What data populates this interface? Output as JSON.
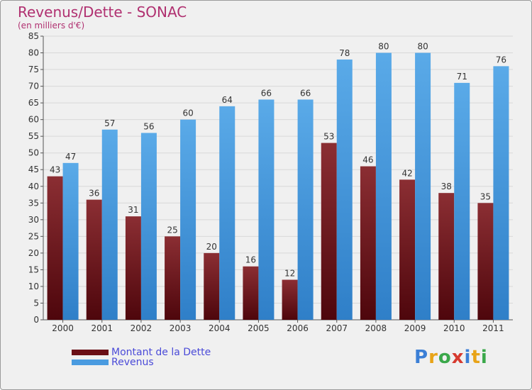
{
  "title": "Revenus/Dette - SONAC",
  "subtitle": "(en milliers d'€)",
  "legend": [
    {
      "label": "Montant de la Dette",
      "color": "#6a0f16"
    },
    {
      "label": "Revenus",
      "color": "#4a9be0"
    }
  ],
  "logo": {
    "letters": [
      "P",
      "r",
      "o",
      "x",
      "i",
      "t",
      "i"
    ],
    "colors": [
      "#3b7fd6",
      "#e8a317",
      "#3aa84a",
      "#d63a2f",
      "#3b7fd6",
      "#e8a317",
      "#3aa84a"
    ]
  },
  "chart_data": {
    "type": "bar",
    "categories": [
      "2000",
      "2001",
      "2002",
      "2003",
      "2004",
      "2005",
      "2006",
      "2007",
      "2008",
      "2009",
      "2010",
      "2011"
    ],
    "series": [
      {
        "name": "Montant de la Dette",
        "values": [
          43,
          36,
          31,
          25,
          20,
          16,
          12,
          53,
          46,
          42,
          38,
          35
        ],
        "color": "#8b2a2e"
      },
      {
        "name": "Revenus",
        "values": [
          47,
          57,
          56,
          60,
          64,
          66,
          66,
          78,
          80,
          80,
          71,
          76
        ],
        "color": "#4a9be0"
      }
    ],
    "ylim": [
      0,
      85
    ],
    "ytick_step": 5,
    "grid": true,
    "legend_position": "bottom-left"
  }
}
